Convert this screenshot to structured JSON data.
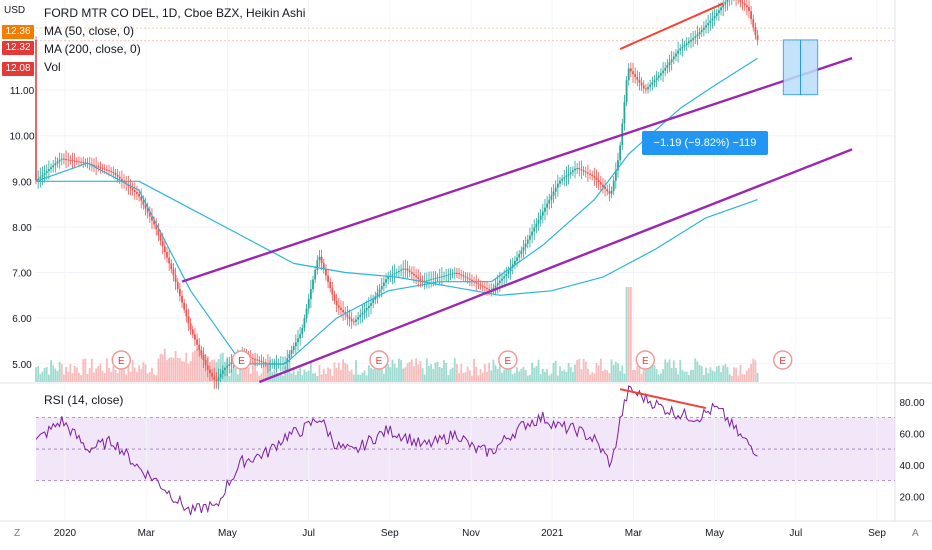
{
  "header": {
    "symbol_line": "FORD MTR CO DEL, 1D, Cboe BZX, Heikin Ashi",
    "ma50_label": "MA (50, close, 0)",
    "ma200_label": "MA (200, close, 0)",
    "vol_label": "Vol",
    "currency": "USD"
  },
  "price_tags": [
    {
      "label": "12.36",
      "color": "#f57c00"
    },
    {
      "label": "12.32",
      "color": "#e53935"
    },
    {
      "label": "12.08",
      "color": "#e53935"
    }
  ],
  "measure_label": "−1.19 (−9.82%) −119",
  "rsi_label": "RSI (14, close)",
  "bottom_left_icon": "Z",
  "bottom_right_icon": "A",
  "earnings_marker": "E",
  "chart_data": {
    "type": "candlestick",
    "style": "Heikin Ashi",
    "price_axis": {
      "ticks": [
        "5.00",
        "6.00",
        "7.00",
        "8.00",
        "9.00",
        "10.00",
        "11.00"
      ],
      "ylim": [
        4.6,
        12.8
      ]
    },
    "rsi_axis": {
      "ticks": [
        "20.00",
        "40.00",
        "60.00",
        "80.00"
      ],
      "ylim": [
        5,
        90
      ],
      "band": [
        30,
        70
      ]
    },
    "time_axis": {
      "ticks": [
        "2020",
        "Mar",
        "May",
        "Jul",
        "Sep",
        "Nov",
        "2021",
        "Mar",
        "May",
        "Jul",
        "Sep"
      ]
    },
    "close_path": [
      [
        0,
        9.0
      ],
      [
        3,
        9.5
      ],
      [
        6,
        9.4
      ],
      [
        9,
        9.2
      ],
      [
        12,
        8.7
      ],
      [
        14,
        8.0
      ],
      [
        16,
        7.0
      ],
      [
        18,
        5.8
      ],
      [
        20,
        4.9
      ],
      [
        21,
        4.6
      ],
      [
        22,
        4.9
      ],
      [
        24,
        5.2
      ],
      [
        27,
        5.0
      ],
      [
        29,
        5.0
      ],
      [
        31,
        5.7
      ],
      [
        33,
        7.4
      ],
      [
        35,
        6.3
      ],
      [
        37,
        5.9
      ],
      [
        39,
        6.3
      ],
      [
        41,
        6.9
      ],
      [
        43,
        7.1
      ],
      [
        45,
        6.8
      ],
      [
        47,
        6.9
      ],
      [
        49,
        7.0
      ],
      [
        51,
        6.8
      ],
      [
        53,
        6.6
      ],
      [
        55,
        7.0
      ],
      [
        57,
        7.6
      ],
      [
        59,
        8.3
      ],
      [
        61,
        9.0
      ],
      [
        63,
        9.3
      ],
      [
        65,
        9.1
      ],
      [
        67,
        8.7
      ],
      [
        68,
        9.6
      ],
      [
        69,
        11.5
      ],
      [
        71,
        11.0
      ],
      [
        73,
        11.4
      ],
      [
        75,
        11.9
      ],
      [
        77,
        12.2
      ],
      [
        79,
        12.6
      ],
      [
        81,
        13.1
      ],
      [
        83,
        12.8
      ],
      [
        84,
        12.1
      ]
    ],
    "ma50_path": [
      [
        0,
        9.0
      ],
      [
        6,
        9.4
      ],
      [
        12,
        8.8
      ],
      [
        18,
        6.6
      ],
      [
        24,
        5.0
      ],
      [
        29,
        5.0
      ],
      [
        35,
        6.0
      ],
      [
        41,
        6.6
      ],
      [
        47,
        6.8
      ],
      [
        53,
        6.8
      ],
      [
        59,
        7.6
      ],
      [
        65,
        8.6
      ],
      [
        69,
        9.6
      ],
      [
        75,
        10.6
      ],
      [
        79,
        11.1
      ],
      [
        84,
        11.7
      ]
    ],
    "ma200_path": [
      [
        0,
        9.0
      ],
      [
        12,
        9.0
      ],
      [
        24,
        7.8
      ],
      [
        30,
        7.2
      ],
      [
        36,
        7.0
      ],
      [
        42,
        6.9
      ],
      [
        48,
        6.7
      ],
      [
        54,
        6.5
      ],
      [
        60,
        6.6
      ],
      [
        66,
        6.9
      ],
      [
        72,
        7.5
      ],
      [
        78,
        8.2
      ],
      [
        84,
        8.6
      ]
    ],
    "channel_upper": [
      [
        17,
        6.8
      ],
      [
        95,
        11.7
      ]
    ],
    "channel_lower": [
      [
        26,
        4.6
      ],
      [
        95,
        9.7
      ]
    ],
    "divergence_price": [
      [
        68,
        11.9
      ],
      [
        80,
        12.9
      ]
    ],
    "divergence_rsi": [
      [
        68,
        88
      ],
      [
        78,
        76
      ]
    ],
    "rsi_path": [
      [
        0,
        55
      ],
      [
        3,
        68
      ],
      [
        6,
        50
      ],
      [
        9,
        55
      ],
      [
        12,
        38
      ],
      [
        14,
        30
      ],
      [
        16,
        20
      ],
      [
        18,
        10
      ],
      [
        20,
        14
      ],
      [
        21,
        12
      ],
      [
        22,
        25
      ],
      [
        24,
        42
      ],
      [
        27,
        48
      ],
      [
        29,
        58
      ],
      [
        31,
        62
      ],
      [
        33,
        70
      ],
      [
        35,
        52
      ],
      [
        37,
        48
      ],
      [
        39,
        56
      ],
      [
        41,
        62
      ],
      [
        43,
        58
      ],
      [
        45,
        52
      ],
      [
        47,
        55
      ],
      [
        49,
        60
      ],
      [
        51,
        50
      ],
      [
        53,
        48
      ],
      [
        55,
        58
      ],
      [
        57,
        66
      ],
      [
        59,
        70
      ],
      [
        61,
        64
      ],
      [
        63,
        62
      ],
      [
        65,
        56
      ],
      [
        67,
        40
      ],
      [
        68,
        68
      ],
      [
        69,
        88
      ],
      [
        71,
        82
      ],
      [
        73,
        76
      ],
      [
        75,
        72
      ],
      [
        77,
        70
      ],
      [
        79,
        76
      ],
      [
        80,
        72
      ],
      [
        82,
        58
      ],
      [
        84,
        48
      ]
    ],
    "earnings_slots": [
      9,
      23,
      39,
      54,
      70,
      86
    ]
  }
}
